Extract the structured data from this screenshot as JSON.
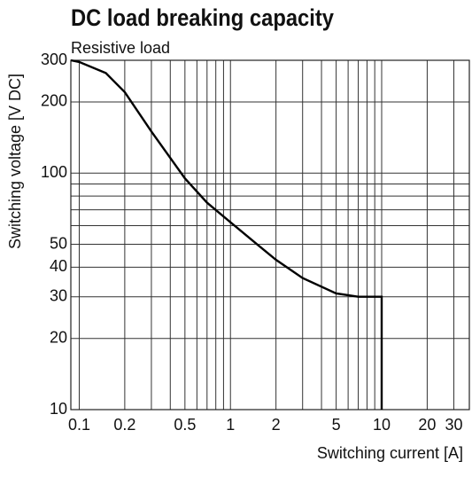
{
  "chart_data": {
    "type": "line",
    "title": "DC load breaking capacity",
    "subtitle": "Resistive load",
    "x_label": "Switching current [A]",
    "y_label": "Switching voltage [V DC]",
    "log_x": true,
    "log_y": true,
    "grid": true,
    "xlim": [
      0.088,
      38
    ],
    "ylim": [
      10,
      300
    ],
    "xticks": [
      0.1,
      0.2,
      0.5,
      1,
      2,
      5,
      10,
      20,
      30
    ],
    "xminor": [
      0.3,
      0.4,
      0.6,
      0.7,
      0.8,
      0.9,
      3,
      4,
      6,
      7,
      8,
      9
    ],
    "yticks": [
      10,
      20,
      30,
      40,
      50,
      100,
      200,
      300
    ],
    "yminor": [
      60,
      70,
      80,
      90
    ],
    "series": [
      {
        "color": "#000000",
        "x": [
          0.088,
          0.1,
          0.15,
          0.2,
          0.3,
          0.5,
          0.7,
          1,
          1.5,
          2,
          3,
          5,
          7,
          10,
          10
        ],
        "values": [
          300,
          295,
          265,
          220,
          150,
          95,
          75,
          62,
          50,
          43,
          36,
          31,
          30,
          30,
          10
        ]
      }
    ]
  }
}
